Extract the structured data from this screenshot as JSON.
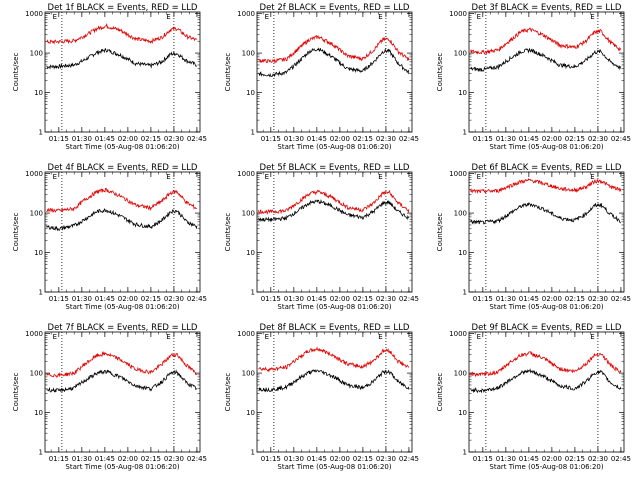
{
  "chart_data": [
    {
      "type": "line",
      "title": "Det 1f BLACK = Events, RED = LLD",
      "xlabel": "Start Time (05-Aug-08 01:06:20)",
      "ylabel": "Counts/sec",
      "x_ticks": [
        "01:15",
        "01:30",
        "01:45",
        "02:00",
        "02:15",
        "02:30",
        "02:45"
      ],
      "y_ticks": [
        "1",
        "10",
        "100",
        "1000"
      ],
      "ylim": [
        1,
        1100
      ],
      "y_scale": "log",
      "dotted_lines": [
        "01:17",
        "02:30"
      ],
      "marker": "E",
      "series": [
        {
          "color": "#000000",
          "x": [
            "01:07",
            "01:15",
            "01:25",
            "01:32",
            "01:40",
            "01:46",
            "01:55",
            "02:05",
            "02:15",
            "02:22",
            "02:28",
            "02:32",
            "02:38",
            "02:45"
          ],
          "values": [
            45,
            46,
            50,
            68,
            105,
            120,
            90,
            55,
            48,
            60,
            95,
            98,
            65,
            50
          ]
        },
        {
          "color": "#e00000",
          "x": [
            "01:07",
            "01:15",
            "01:25",
            "01:32",
            "01:40",
            "01:46",
            "01:55",
            "02:05",
            "02:15",
            "02:22",
            "02:28",
            "02:32",
            "02:38",
            "02:45"
          ],
          "values": [
            190,
            195,
            205,
            280,
            420,
            490,
            380,
            230,
            200,
            250,
            400,
            420,
            270,
            210
          ]
        }
      ]
    },
    {
      "type": "line",
      "title": "Det 2f BLACK = Events, RED = LLD",
      "xlabel": "Start Time (05-Aug-08 01:06:20)",
      "ylabel": "Counts/sec",
      "x_ticks": [
        "01:15",
        "01:30",
        "01:45",
        "02:00",
        "02:15",
        "02:30",
        "02:45"
      ],
      "y_ticks": [
        "1",
        "10",
        "100",
        "1000"
      ],
      "ylim": [
        1,
        1100
      ],
      "y_scale": "log",
      "dotted_lines": [
        "01:17",
        "02:30"
      ],
      "marker": "E",
      "series": [
        {
          "color": "#000000",
          "x": [
            "01:07",
            "01:15",
            "01:25",
            "01:32",
            "01:40",
            "01:46",
            "01:55",
            "02:05",
            "02:15",
            "02:22",
            "02:28",
            "02:32",
            "02:38",
            "02:45"
          ],
          "values": [
            30,
            28,
            32,
            55,
            110,
            130,
            80,
            40,
            35,
            60,
            110,
            115,
            55,
            32
          ]
        },
        {
          "color": "#e00000",
          "x": [
            "01:07",
            "01:15",
            "01:25",
            "01:32",
            "01:40",
            "01:46",
            "01:55",
            "02:05",
            "02:15",
            "02:22",
            "02:28",
            "02:32",
            "02:38",
            "02:45"
          ],
          "values": [
            65,
            62,
            70,
            120,
            220,
            260,
            170,
            85,
            72,
            120,
            220,
            230,
            110,
            68
          ]
        }
      ]
    },
    {
      "type": "line",
      "title": "Det 3f BLACK = Events, RED = LLD",
      "xlabel": "Start Time (05-Aug-08 01:06:20)",
      "ylabel": "Counts/sec",
      "x_ticks": [
        "01:15",
        "01:30",
        "01:45",
        "02:00",
        "02:15",
        "02:30",
        "02:45"
      ],
      "y_ticks": [
        "1",
        "10",
        "100",
        "1000"
      ],
      "ylim": [
        1,
        1100
      ],
      "y_scale": "log",
      "dotted_lines": [
        "01:17",
        "02:30"
      ],
      "marker": "E",
      "series": [
        {
          "color": "#000000",
          "x": [
            "01:07",
            "01:15",
            "01:25",
            "01:32",
            "01:40",
            "01:46",
            "01:55",
            "02:05",
            "02:15",
            "02:22",
            "02:28",
            "02:32",
            "02:38",
            "02:45"
          ],
          "values": [
            40,
            38,
            45,
            70,
            110,
            120,
            85,
            50,
            45,
            65,
            105,
            110,
            60,
            42
          ]
        },
        {
          "color": "#e00000",
          "x": [
            "01:07",
            "01:15",
            "01:25",
            "01:32",
            "01:40",
            "01:46",
            "01:55",
            "02:05",
            "02:15",
            "02:22",
            "02:28",
            "02:32",
            "02:38",
            "02:45"
          ],
          "values": [
            110,
            105,
            120,
            200,
            350,
            400,
            280,
            160,
            140,
            200,
            340,
            360,
            190,
            120
          ]
        }
      ]
    },
    {
      "type": "line",
      "title": "Det 4f BLACK = Events, RED = LLD",
      "xlabel": "Start Time (05-Aug-08 01:06:20)",
      "ylabel": "Counts/sec",
      "x_ticks": [
        "01:15",
        "01:30",
        "01:45",
        "02:00",
        "02:15",
        "02:30",
        "02:45"
      ],
      "y_ticks": [
        "1",
        "10",
        "100",
        "1000"
      ],
      "ylim": [
        1,
        1100
      ],
      "y_scale": "log",
      "dotted_lines": [
        "01:17",
        "02:30"
      ],
      "marker": "E",
      "series": [
        {
          "color": "#000000",
          "x": [
            "01:07",
            "01:15",
            "01:25",
            "01:32",
            "01:40",
            "01:46",
            "01:55",
            "02:05",
            "02:15",
            "02:22",
            "02:28",
            "02:32",
            "02:38",
            "02:45"
          ],
          "values": [
            45,
            40,
            48,
            70,
            110,
            120,
            85,
            52,
            45,
            65,
            110,
            115,
            62,
            45
          ]
        },
        {
          "color": "#e00000",
          "x": [
            "01:07",
            "01:15",
            "01:25",
            "01:32",
            "01:40",
            "01:46",
            "01:55",
            "02:05",
            "02:15",
            "02:22",
            "02:28",
            "02:32",
            "02:38",
            "02:45"
          ],
          "values": [
            120,
            115,
            130,
            220,
            350,
            390,
            270,
            160,
            135,
            200,
            330,
            350,
            190,
            130
          ]
        }
      ]
    },
    {
      "type": "line",
      "title": "Det 5f BLACK = Events, RED = LLD",
      "xlabel": "Start Time (05-Aug-08 01:06:20)",
      "ylabel": "Counts/sec",
      "x_ticks": [
        "01:15",
        "01:30",
        "01:45",
        "02:00",
        "02:15",
        "02:30",
        "02:45"
      ],
      "y_ticks": [
        "1",
        "10",
        "100",
        "1000"
      ],
      "ylim": [
        1,
        1100
      ],
      "y_scale": "log",
      "dotted_lines": [
        "01:17",
        "02:30"
      ],
      "marker": "E",
      "series": [
        {
          "color": "#000000",
          "x": [
            "01:07",
            "01:15",
            "01:25",
            "01:32",
            "01:40",
            "01:46",
            "01:55",
            "02:05",
            "02:15",
            "02:22",
            "02:28",
            "02:32",
            "02:38",
            "02:45"
          ],
          "values": [
            70,
            68,
            75,
            110,
            180,
            200,
            150,
            90,
            78,
            110,
            180,
            190,
            110,
            75
          ]
        },
        {
          "color": "#e00000",
          "x": [
            "01:07",
            "01:15",
            "01:25",
            "01:32",
            "01:40",
            "01:46",
            "01:55",
            "02:05",
            "02:15",
            "02:22",
            "02:28",
            "02:32",
            "02:38",
            "02:45"
          ],
          "values": [
            110,
            108,
            115,
            180,
            310,
            350,
            250,
            140,
            120,
            180,
            320,
            340,
            180,
            115
          ]
        }
      ]
    },
    {
      "type": "line",
      "title": "Det 6f BLACK = Events, RED = LLD",
      "xlabel": "Start Time (05-Aug-08 01:06:20)",
      "ylabel": "Counts/sec",
      "x_ticks": [
        "01:15",
        "01:30",
        "01:45",
        "02:00",
        "02:15",
        "02:30",
        "02:45"
      ],
      "y_ticks": [
        "1",
        "10",
        "100",
        "1000"
      ],
      "ylim": [
        1,
        1100
      ],
      "y_scale": "log",
      "dotted_lines": [
        "01:17",
        "02:30"
      ],
      "marker": "E",
      "series": [
        {
          "color": "#000000",
          "x": [
            "01:07",
            "01:15",
            "01:25",
            "01:32",
            "01:40",
            "01:46",
            "01:55",
            "02:05",
            "02:15",
            "02:22",
            "02:28",
            "02:32",
            "02:38",
            "02:45"
          ],
          "values": [
            60,
            58,
            64,
            95,
            150,
            170,
            125,
            75,
            66,
            95,
            155,
            165,
            95,
            62
          ]
        },
        {
          "color": "#e00000",
          "x": [
            "01:07",
            "01:15",
            "01:25",
            "01:32",
            "01:40",
            "01:46",
            "01:55",
            "02:05",
            "02:15",
            "02:22",
            "02:28",
            "02:32",
            "02:38",
            "02:45"
          ],
          "values": [
            360,
            355,
            370,
            480,
            630,
            680,
            560,
            420,
            380,
            460,
            640,
            660,
            470,
            380
          ]
        }
      ]
    },
    {
      "type": "line",
      "title": "Det 7f BLACK = Events, RED = LLD",
      "xlabel": "Start Time (05-Aug-08 01:06:20)",
      "ylabel": "Counts/sec",
      "x_ticks": [
        "01:15",
        "01:30",
        "01:45",
        "02:00",
        "02:15",
        "02:30",
        "02:45"
      ],
      "y_ticks": [
        "1",
        "10",
        "100",
        "1000"
      ],
      "ylim": [
        1,
        1100
      ],
      "y_scale": "log",
      "dotted_lines": [
        "01:17",
        "02:30"
      ],
      "marker": "E",
      "series": [
        {
          "color": "#000000",
          "x": [
            "01:07",
            "01:15",
            "01:25",
            "01:32",
            "01:40",
            "01:46",
            "01:55",
            "02:05",
            "02:15",
            "02:22",
            "02:28",
            "02:32",
            "02:38",
            "02:45"
          ],
          "values": [
            38,
            36,
            42,
            65,
            100,
            110,
            80,
            48,
            40,
            60,
            100,
            105,
            58,
            40
          ]
        },
        {
          "color": "#e00000",
          "x": [
            "01:07",
            "01:15",
            "01:25",
            "01:32",
            "01:40",
            "01:46",
            "01:55",
            "02:05",
            "02:15",
            "02:22",
            "02:28",
            "02:32",
            "02:38",
            "02:45"
          ],
          "values": [
            90,
            88,
            100,
            170,
            280,
            310,
            220,
            125,
            105,
            165,
            280,
            300,
            160,
            95
          ]
        }
      ]
    },
    {
      "type": "line",
      "title": "Det 8f BLACK = Events, RED = LLD",
      "xlabel": "Start Time (05-Aug-08 01:06:20)",
      "ylabel": "Counts/sec",
      "x_ticks": [
        "01:15",
        "01:30",
        "01:45",
        "02:00",
        "02:15",
        "02:30",
        "02:45"
      ],
      "y_ticks": [
        "1",
        "10",
        "100",
        "1000"
      ],
      "ylim": [
        1,
        1100
      ],
      "y_scale": "log",
      "dotted_lines": [
        "01:17",
        "02:30"
      ],
      "marker": "E",
      "series": [
        {
          "color": "#000000",
          "x": [
            "01:07",
            "01:15",
            "01:25",
            "01:32",
            "01:40",
            "01:46",
            "01:55",
            "02:05",
            "02:15",
            "02:22",
            "02:28",
            "02:32",
            "02:38",
            "02:45"
          ],
          "values": [
            40,
            38,
            44,
            68,
            105,
            115,
            85,
            50,
            42,
            62,
            105,
            112,
            60,
            42
          ]
        },
        {
          "color": "#e00000",
          "x": [
            "01:07",
            "01:15",
            "01:25",
            "01:32",
            "01:40",
            "01:46",
            "01:55",
            "02:05",
            "02:15",
            "02:22",
            "02:28",
            "02:32",
            "02:38",
            "02:45"
          ],
          "values": [
            130,
            125,
            140,
            230,
            370,
            410,
            290,
            170,
            145,
            210,
            360,
            380,
            200,
            135
          ]
        }
      ]
    },
    {
      "type": "line",
      "title": "Det 9f BLACK = Events, RED = LLD",
      "xlabel": "Start Time (05-Aug-08 01:06:20)",
      "ylabel": "Counts/sec",
      "x_ticks": [
        "01:15",
        "01:30",
        "01:45",
        "02:00",
        "02:15",
        "02:30",
        "02:45"
      ],
      "y_ticks": [
        "1",
        "10",
        "100",
        "1000"
      ],
      "ylim": [
        1,
        1100
      ],
      "y_scale": "log",
      "dotted_lines": [
        "01:17",
        "02:30"
      ],
      "marker": "E",
      "series": [
        {
          "color": "#000000",
          "x": [
            "01:07",
            "01:15",
            "01:25",
            "01:32",
            "01:40",
            "01:46",
            "01:55",
            "02:05",
            "02:15",
            "02:22",
            "02:28",
            "02:32",
            "02:38",
            "02:45"
          ],
          "values": [
            38,
            36,
            42,
            65,
            102,
            112,
            82,
            48,
            40,
            60,
            102,
            108,
            58,
            40
          ]
        },
        {
          "color": "#e00000",
          "x": [
            "01:07",
            "01:15",
            "01:25",
            "01:32",
            "01:40",
            "01:46",
            "01:55",
            "02:05",
            "02:15",
            "02:22",
            "02:28",
            "02:32",
            "02:38",
            "02:45"
          ],
          "values": [
            95,
            92,
            105,
            180,
            290,
            320,
            230,
            130,
            110,
            170,
            290,
            310,
            165,
            100
          ]
        }
      ]
    }
  ]
}
